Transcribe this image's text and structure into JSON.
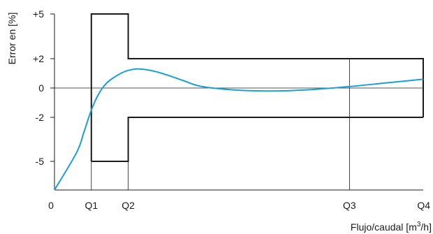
{
  "chart_data": {
    "type": "line",
    "title": "",
    "xlabel": "Flujo/caudal [m",
    "xlabel_sup": "3",
    "xlabel_suffix": "/h]",
    "ylabel": "Error en [%]",
    "x_ticks": [
      "0",
      "Q1",
      "Q2",
      "Q3",
      "Q4"
    ],
    "y_ticks": [
      {
        "label": "+5",
        "value": 5
      },
      {
        "label": "+2",
        "value": 2
      },
      {
        "label": "0",
        "value": 0
      },
      {
        "label": "-2",
        "value": -2
      },
      {
        "label": "-5",
        "value": -5
      }
    ],
    "grid": false,
    "tolerance_envelope": [
      {
        "x": "Q1",
        "upper": 5,
        "lower": -5
      },
      {
        "x": "Q2",
        "upper": 5,
        "lower": -5
      },
      {
        "x": "Q2",
        "upper": 2,
        "lower": -2
      },
      {
        "x": "Q4",
        "upper": 2,
        "lower": -2
      }
    ],
    "series": [
      {
        "color": "#1aa0d8",
        "points": [
          {
            "x": 0,
            "y": -7
          },
          {
            "x": 0.6,
            "y": -4.4
          },
          {
            "x": 0.8,
            "y": -3.0
          },
          {
            "x": 1,
            "y": -1.5
          },
          {
            "x": 1.2,
            "y": -0.4
          },
          {
            "x": 1.4,
            "y": 0.3
          },
          {
            "x": 1.6,
            "y": 0.7
          },
          {
            "x": 1.8,
            "y": 1.0
          },
          {
            "x": 2,
            "y": 1.2
          },
          {
            "x": 2.3,
            "y": 1.3
          },
          {
            "x": 2.7,
            "y": 1.15
          },
          {
            "x": 3.1,
            "y": 0.85
          },
          {
            "x": 3.5,
            "y": 0.5
          },
          {
            "x": 4,
            "y": 0.1
          },
          {
            "x": 5,
            "y": -0.15
          },
          {
            "x": 6,
            "y": -0.2
          },
          {
            "x": 7,
            "y": -0.1
          },
          {
            "x": 8,
            "y": 0.1
          },
          {
            "x": 9,
            "y": 0.35
          },
          {
            "x": 10,
            "y": 0.6
          }
        ]
      }
    ],
    "x_tick_positions": {
      "0": 0,
      "Q1": 1,
      "Q2": 2,
      "Q3": 8,
      "Q4": 10
    },
    "colors": {
      "axis": "#1a1a1a",
      "envelope": "#1a1a1a",
      "curve": "#1aa0d8"
    }
  }
}
